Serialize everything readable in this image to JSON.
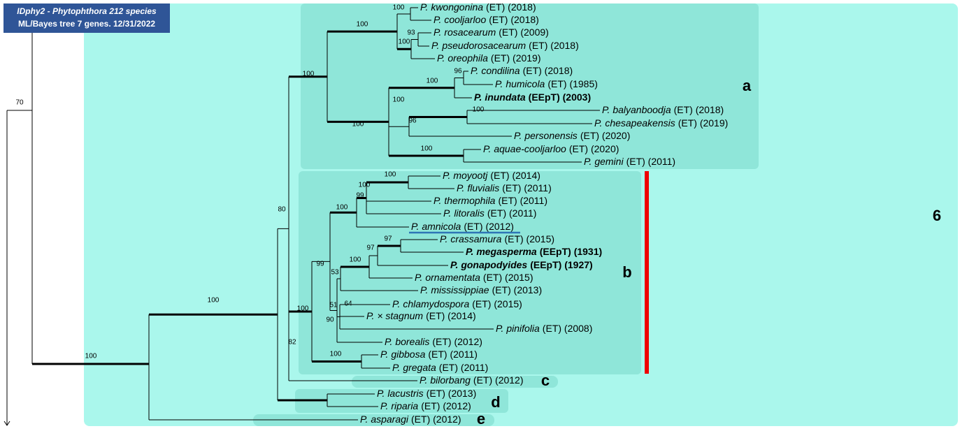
{
  "header": {
    "line1": "IDphy2 - Phytophthora 212 species",
    "line2": "ML/Bayes tree 7 genes. 12/31/2022"
  },
  "taxa": [
    {
      "name": "P. kwongonina",
      "info": "(ET) (2018)"
    },
    {
      "name": "P. cooljarloo",
      "info": "(ET) (2018)"
    },
    {
      "name": "P. rosacearum",
      "info": "(ET) (2009)"
    },
    {
      "name": "P. pseudorosacearum",
      "info": "(ET) (2018)"
    },
    {
      "name": "P. oreophila",
      "info": "(ET) (2019)"
    },
    {
      "name": "P. condilina",
      "info": "(ET) (2018)"
    },
    {
      "name": "P. humicola",
      "info": "(ET) (1985)"
    },
    {
      "name": "P. inundata",
      "info": "(EEpT) (2003)"
    },
    {
      "name": "P. balyanboodja",
      "info": "(ET) (2018)"
    },
    {
      "name": "P. chesapeakensis",
      "info": "(ET) (2019)"
    },
    {
      "name": "P. personensis",
      "info": "(ET) (2020)"
    },
    {
      "name": "P. aquae-cooljarloo",
      "info": "(ET) (2020)"
    },
    {
      "name": "P. gemini",
      "info": "(ET) (2011)"
    },
    {
      "name": "P. moyootj",
      "info": "(ET) (2014)"
    },
    {
      "name": "P. fluvialis",
      "info": "(ET) (2011)"
    },
    {
      "name": "P. thermophila",
      "info": "(ET) (2011)"
    },
    {
      "name": "P. litoralis",
      "info": "(ET) (2011)"
    },
    {
      "name": "P. amnicola",
      "info": "(ET) (2012)"
    },
    {
      "name": "P. crassamura",
      "info": "(ET) (2015)"
    },
    {
      "name": "P. megasperma",
      "info": "(EEpT) (1931)"
    },
    {
      "name": "P. gonapodyides",
      "info": "(EEpT) (1927)"
    },
    {
      "name": "P. ornamentata",
      "info": "(ET) (2015)"
    },
    {
      "name": "P. mississippiae",
      "info": "(ET) (2013)"
    },
    {
      "name": "P. chlamydospora",
      "info": "(ET) (2015)"
    },
    {
      "name": "P. × stagnum",
      "info": "(ET) (2014)"
    },
    {
      "name": "P. pinifolia",
      "info": "(ET) (2008)"
    },
    {
      "name": "P. borealis",
      "info": "(ET) (2012)"
    },
    {
      "name": "P. gibbosa",
      "info": "(ET) (2011)"
    },
    {
      "name": "P. gregata",
      "info": "(ET) (2011)"
    },
    {
      "name": "P. bilorbang",
      "info": "(ET) (2012)"
    },
    {
      "name": "P. lacustris",
      "info": "(ET) (2013)"
    },
    {
      "name": "P. riparia",
      "info": "(ET) (2012)"
    },
    {
      "name": "P. asparagi",
      "info": "(ET) (2012)"
    }
  ],
  "support": [
    100,
    100,
    93,
    100,
    100,
    96,
    100,
    100,
    100,
    96,
    100,
    100,
    100,
    100,
    99,
    100,
    80,
    97,
    97,
    100,
    99,
    53,
    64,
    100,
    100,
    51,
    90,
    82,
    100,
    100,
    70
  ],
  "clades": [
    "a",
    "b",
    "c",
    "d",
    "e",
    "6"
  ]
}
